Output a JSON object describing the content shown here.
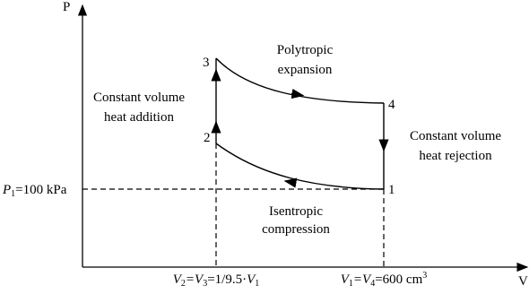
{
  "axes": {
    "y_label": "P",
    "x_label": "V"
  },
  "points": {
    "p1": "1",
    "p2": "2",
    "p3": "3",
    "p4": "4"
  },
  "processes": {
    "expansion": [
      "Polytropic",
      "expansion"
    ],
    "heat_addition": [
      "Constant volume",
      "heat addition"
    ],
    "heat_rejection": [
      "Constant volume",
      "heat rejection"
    ],
    "compression": [
      "Isentropic",
      "compression"
    ]
  },
  "markers": {
    "p1_label": [
      "P",
      "1",
      "=100 kPa"
    ],
    "v2_label": [
      "V",
      "2",
      "=V",
      "3",
      "=1/9.5·",
      "V",
      "1"
    ],
    "v1_label": [
      "V",
      "1",
      "=V",
      "4",
      "=600 cm",
      "3"
    ]
  }
}
